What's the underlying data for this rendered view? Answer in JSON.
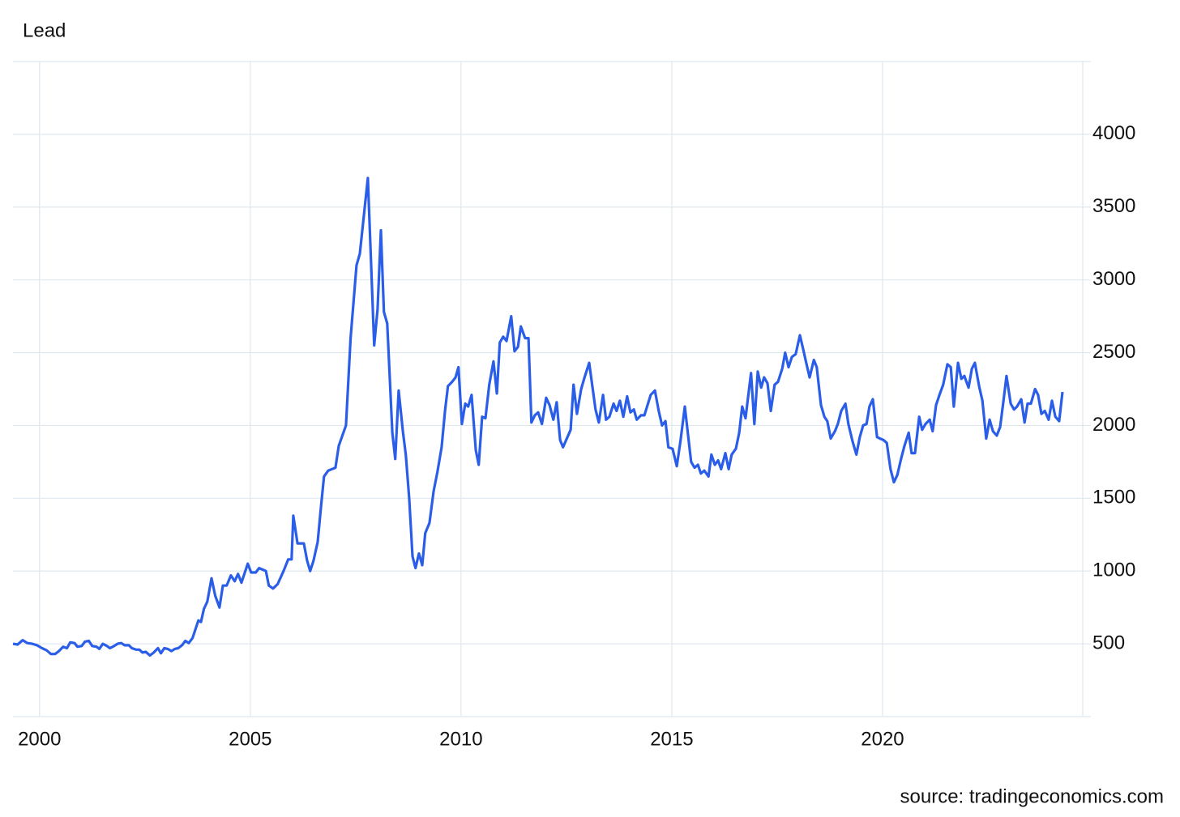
{
  "chart_data": {
    "type": "line",
    "title": "Lead",
    "source": "source: tradingeconomics.com",
    "color": "#2b5ee8",
    "grid": true,
    "xlim": [
      1999.37,
      2024.75
    ],
    "xticks": [
      2000,
      2005,
      2010,
      2015,
      2020
    ],
    "ylim": [
      0,
      4500
    ],
    "yticks": [
      500,
      1000,
      1500,
      2000,
      2500,
      3000,
      3500,
      4000
    ],
    "x": [
      1999.37,
      1999.48,
      1999.6,
      1999.71,
      1999.83,
      1999.94,
      2000.06,
      2000.17,
      2000.27,
      2000.37,
      2000.46,
      2000.56,
      2000.65,
      2000.73,
      2000.83,
      2000.9,
      2001.0,
      2001.08,
      2001.17,
      2001.25,
      2001.35,
      2001.42,
      2001.5,
      2001.6,
      2001.67,
      2001.77,
      2001.85,
      2001.94,
      2002.02,
      2002.12,
      2002.19,
      2002.29,
      2002.37,
      2002.44,
      2002.52,
      2002.62,
      2002.71,
      2002.81,
      2002.88,
      2002.96,
      2003.04,
      2003.13,
      2003.21,
      2003.29,
      2003.38,
      2003.46,
      2003.54,
      2003.63,
      2003.77,
      2003.83,
      2003.9,
      2003.98,
      2004.08,
      2004.17,
      2004.27,
      2004.35,
      2004.44,
      2004.54,
      2004.63,
      2004.71,
      2004.79,
      2004.94,
      2005.02,
      2005.13,
      2005.21,
      2005.37,
      2005.44,
      2005.54,
      2005.65,
      2005.79,
      2005.9,
      2005.98,
      2006.02,
      2006.12,
      2006.27,
      2006.35,
      2006.42,
      2006.5,
      2006.6,
      2006.67,
      2006.75,
      2006.85,
      2007.02,
      2007.1,
      2007.27,
      2007.38,
      2007.52,
      2007.6,
      2007.79,
      2007.94,
      2008.02,
      2008.1,
      2008.17,
      2008.25,
      2008.37,
      2008.44,
      2008.52,
      2008.62,
      2008.69,
      2008.77,
      2008.85,
      2008.92,
      2009.0,
      2009.08,
      2009.15,
      2009.25,
      2009.35,
      2009.44,
      2009.54,
      2009.62,
      2009.69,
      2009.79,
      2009.87,
      2009.94,
      2010.02,
      2010.1,
      2010.17,
      2010.25,
      2010.35,
      2010.42,
      2010.5,
      2010.58,
      2010.67,
      2010.77,
      2010.85,
      2010.92,
      2011.0,
      2011.08,
      2011.19,
      2011.27,
      2011.35,
      2011.42,
      2011.52,
      2011.6,
      2011.67,
      2011.75,
      2011.83,
      2011.92,
      2012.02,
      2012.1,
      2012.19,
      2012.27,
      2012.35,
      2012.42,
      2012.6,
      2012.67,
      2012.75,
      2012.85,
      2012.92,
      2013.04,
      2013.19,
      2013.27,
      2013.37,
      2013.44,
      2013.52,
      2013.62,
      2013.69,
      2013.77,
      2013.85,
      2013.94,
      2014.02,
      2014.1,
      2014.17,
      2014.27,
      2014.35,
      2014.5,
      2014.6,
      2014.69,
      2014.77,
      2014.85,
      2014.92,
      2015.02,
      2015.12,
      2015.21,
      2015.31,
      2015.4,
      2015.46,
      2015.54,
      2015.62,
      2015.69,
      2015.77,
      2015.87,
      2015.94,
      2016.02,
      2016.1,
      2016.17,
      2016.27,
      2016.35,
      2016.42,
      2016.52,
      2016.6,
      2016.67,
      2016.75,
      2016.88,
      2016.96,
      2017.04,
      2017.12,
      2017.19,
      2017.27,
      2017.35,
      2017.44,
      2017.52,
      2017.62,
      2017.69,
      2017.77,
      2017.85,
      2017.94,
      2018.04,
      2018.12,
      2018.19,
      2018.27,
      2018.37,
      2018.44,
      2018.54,
      2018.62,
      2018.69,
      2018.77,
      2018.87,
      2018.94,
      2019.02,
      2019.12,
      2019.19,
      2019.29,
      2019.38,
      2019.46,
      2019.54,
      2019.62,
      2019.69,
      2019.77,
      2019.87,
      2019.94,
      2020.02,
      2020.1,
      2020.19,
      2020.27,
      2020.35,
      2020.44,
      2020.52,
      2020.62,
      2020.69,
      2020.77,
      2020.87,
      2020.94,
      2021.02,
      2021.12,
      2021.19,
      2021.27,
      2021.35,
      2021.44,
      2021.54,
      2021.62,
      2021.69,
      2021.79,
      2021.87,
      2021.94,
      2022.04,
      2022.12,
      2022.19,
      2022.29,
      2022.37,
      2022.46,
      2022.54,
      2022.62,
      2022.71,
      2022.79,
      2022.87,
      2022.94,
      2023.04,
      2023.12,
      2023.19,
      2023.29,
      2023.37,
      2023.44,
      2023.52,
      2023.62,
      2023.69,
      2023.77,
      2023.85,
      2023.94,
      2024.02,
      2024.1,
      2024.19,
      2024.27
    ],
    "values": [
      500,
      495,
      525,
      505,
      500,
      490,
      470,
      455,
      430,
      430,
      450,
      480,
      470,
      510,
      505,
      480,
      485,
      515,
      520,
      485,
      480,
      465,
      500,
      485,
      470,
      485,
      500,
      505,
      490,
      490,
      470,
      460,
      460,
      440,
      445,
      420,
      440,
      470,
      435,
      470,
      465,
      450,
      465,
      470,
      490,
      520,
      505,
      540,
      660,
      650,
      740,
      790,
      950,
      830,
      750,
      900,
      900,
      970,
      930,
      980,
      920,
      1050,
      990,
      990,
      1020,
      1000,
      900,
      880,
      910,
      1000,
      1080,
      1080,
      1380,
      1190,
      1190,
      1070,
      1000,
      1070,
      1200,
      1420,
      1650,
      1690,
      1710,
      1860,
      2000,
      2600,
      3100,
      3180,
      3700,
      2550,
      2800,
      3340,
      2780,
      2700,
      1950,
      1770,
      2240,
      1960,
      1800,
      1500,
      1100,
      1020,
      1120,
      1040,
      1260,
      1330,
      1550,
      1680,
      1850,
      2100,
      2270,
      2300,
      2330,
      2400,
      2010,
      2150,
      2130,
      2210,
      1830,
      1730,
      2060,
      2050,
      2280,
      2440,
      2220,
      2570,
      2610,
      2580,
      2750,
      2510,
      2540,
      2680,
      2600,
      2600,
      2020,
      2070,
      2090,
      2010,
      2190,
      2140,
      2040,
      2160,
      1900,
      1850,
      1970,
      2280,
      2080,
      2250,
      2320,
      2430,
      2110,
      2020,
      2210,
      2040,
      2060,
      2150,
      2100,
      2170,
      2060,
      2200,
      2090,
      2110,
      2040,
      2070,
      2070,
      2210,
      2240,
      2100,
      2000,
      2030,
      1850,
      1840,
      1720,
      1900,
      2130,
      1900,
      1750,
      1710,
      1730,
      1670,
      1690,
      1650,
      1800,
      1730,
      1760,
      1700,
      1810,
      1700,
      1800,
      1840,
      1950,
      2130,
      2050,
      2360,
      2010,
      2370,
      2260,
      2330,
      2290,
      2100,
      2280,
      2300,
      2390,
      2500,
      2400,
      2470,
      2490,
      2620,
      2520,
      2430,
      2330,
      2450,
      2400,
      2140,
      2060,
      2030,
      1910,
      1960,
      2010,
      2100,
      2150,
      2010,
      1890,
      1800,
      1920,
      2000,
      2010,
      2130,
      2180,
      1920,
      1910,
      1900,
      1880,
      1700,
      1610,
      1660,
      1770,
      1860,
      1950,
      1810,
      1810,
      2060,
      1970,
      2010,
      2040,
      1960,
      2140,
      2210,
      2280,
      2420,
      2400,
      2130,
      2430,
      2320,
      2340,
      2260,
      2390,
      2430,
      2270,
      2170,
      1910,
      2040,
      1960,
      1930,
      1990,
      2170,
      2340,
      2150,
      2110,
      2130,
      2180,
      2020,
      2150,
      2150,
      2250,
      2210,
      2080,
      2100,
      2040,
      2170,
      2060,
      2030,
      2230
    ]
  }
}
